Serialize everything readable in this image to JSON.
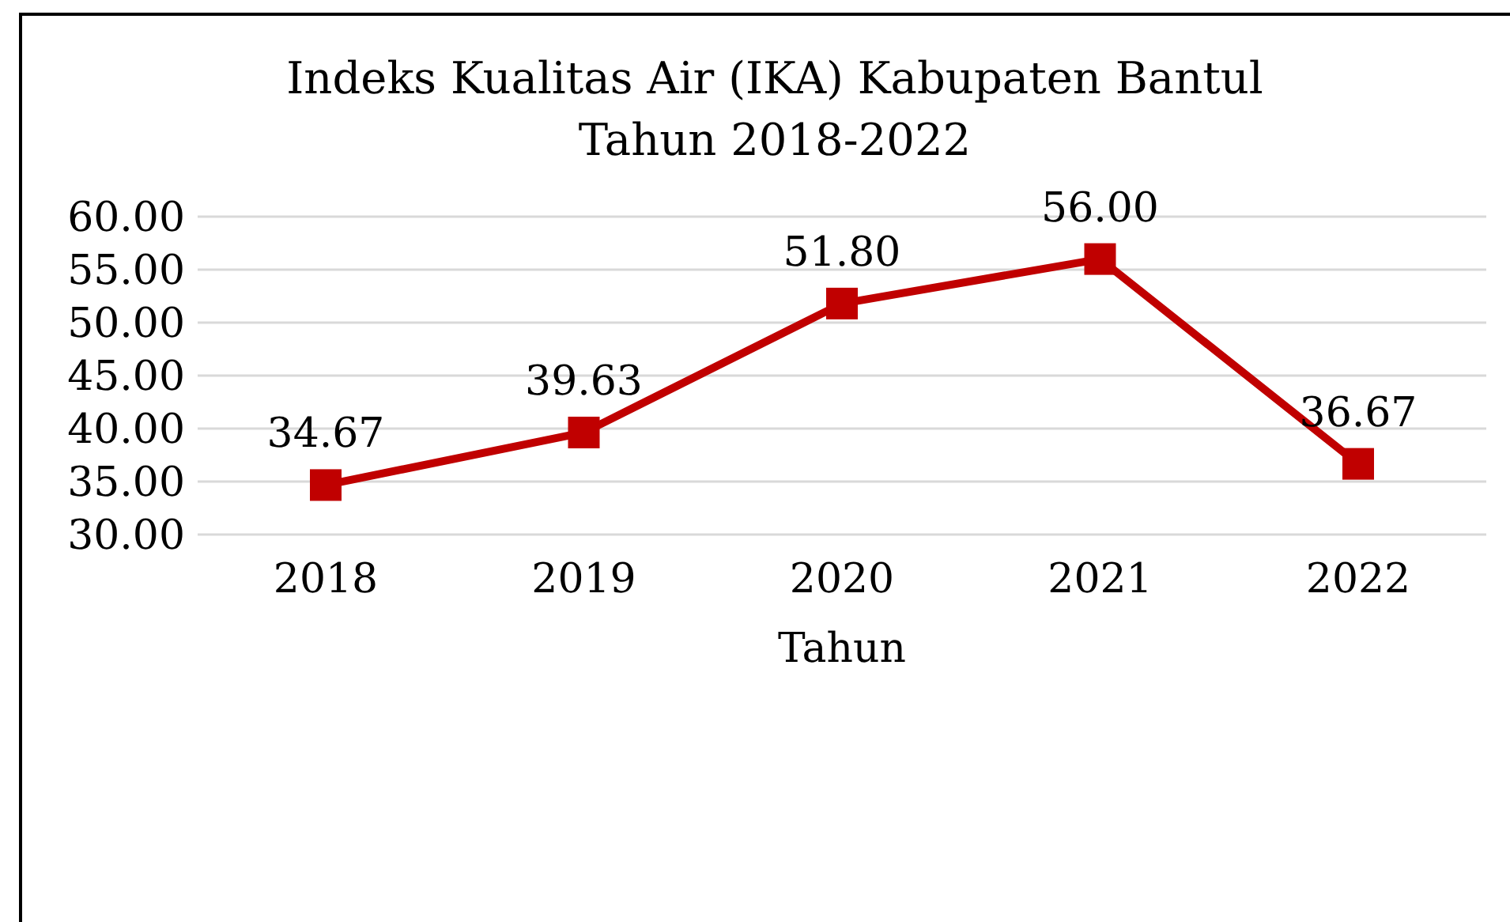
{
  "chart_data": {
    "type": "line",
    "title": "Indeks Kualitas Air (IKA) Kabupaten Bantul\nTahun 2018-2022",
    "xlabel": "Tahun",
    "categories": [
      "2018",
      "2019",
      "2020",
      "2021",
      "2022"
    ],
    "series": [
      {
        "color": "#c00000",
        "values": [
          34.67,
          39.63,
          51.8,
          56.0,
          36.67
        ],
        "value_labels": [
          "34.67",
          "39.63",
          "51.80",
          "56.00",
          "36.67"
        ]
      }
    ],
    "ylim": [
      30,
      60
    ],
    "yticks": [
      {
        "value": 30,
        "label": "30.00"
      },
      {
        "value": 35,
        "label": "35.00"
      },
      {
        "value": 40,
        "label": "40.00"
      },
      {
        "value": 45,
        "label": "45.00"
      },
      {
        "value": 50,
        "label": "50.00"
      },
      {
        "value": 55,
        "label": "55.00"
      },
      {
        "value": 60,
        "label": "60.00"
      }
    ],
    "grid": "y",
    "legend": false,
    "marker": "square",
    "line_style": "solid"
  }
}
